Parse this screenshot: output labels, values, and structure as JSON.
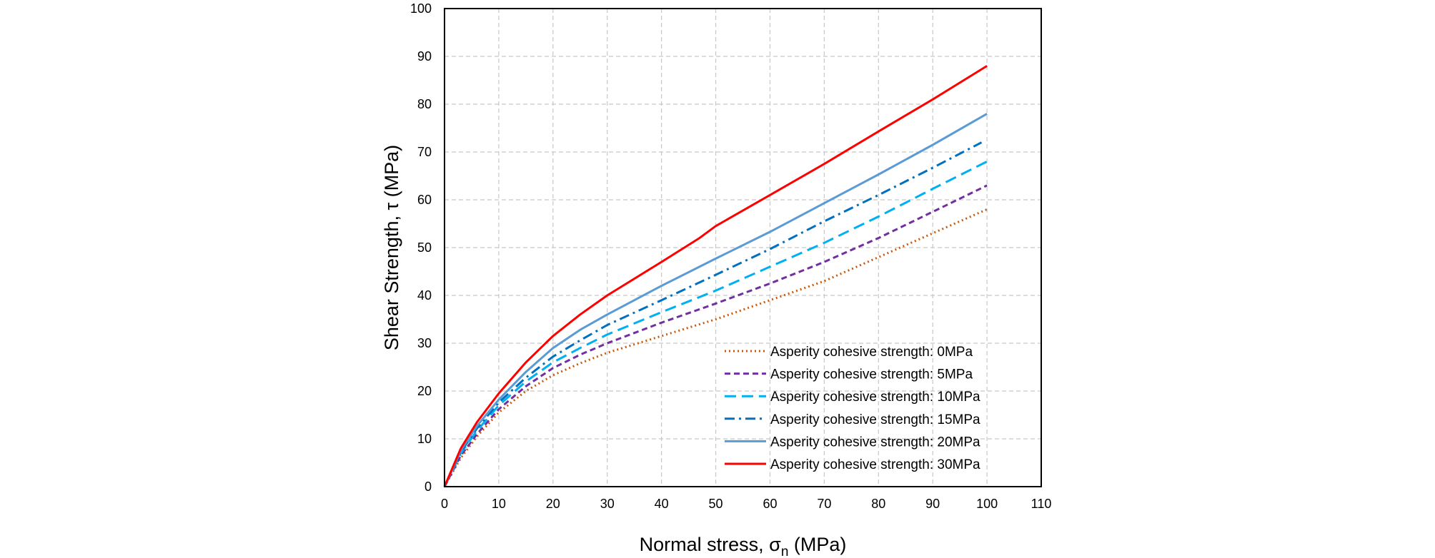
{
  "chart_data": {
    "type": "line",
    "title": "",
    "xlabel": "Normal stress, σ",
    "xlabel_subscript": "n",
    "xlabel_suffix": " (MPa)",
    "ylabel": "Shear Strength, τ (MPa)",
    "xlim": [
      0,
      110
    ],
    "ylim": [
      0,
      100
    ],
    "x_ticks": [
      0,
      10,
      20,
      30,
      40,
      50,
      60,
      70,
      80,
      90,
      100,
      110
    ],
    "y_ticks": [
      0,
      10,
      20,
      30,
      40,
      50,
      60,
      70,
      80,
      90,
      100
    ],
    "x_tick_labels": [
      "0",
      "10",
      "20",
      "30",
      "40",
      "50",
      "60",
      "70",
      "80",
      "90",
      "100",
      "110"
    ],
    "y_tick_labels": [
      "0",
      "10",
      "20",
      "30",
      "40",
      "50",
      "60",
      "70",
      "80",
      "90",
      "100"
    ],
    "grid": true,
    "grid_style": "dashed",
    "legend_position": "bottom-right",
    "series": [
      {
        "name": "Asperity cohesive strength: 0MPa",
        "color": "#c55a11",
        "dash": "dotted",
        "x": [
          0,
          3,
          6,
          10,
          15,
          20,
          25,
          30,
          40,
          50,
          60,
          70,
          80,
          90,
          100
        ],
        "y": [
          0,
          6,
          10.5,
          15.5,
          20,
          23.3,
          25.8,
          28,
          31.5,
          35,
          39,
          43,
          48,
          53,
          58
        ]
      },
      {
        "name": "Asperity cohesive strength: 5MPa",
        "color": "#7030a0",
        "dash": "dashed",
        "x": [
          0,
          3,
          6,
          10,
          15,
          20,
          25,
          30,
          40,
          50,
          60,
          70,
          80,
          90,
          100
        ],
        "y": [
          0,
          6.5,
          11,
          16.2,
          21,
          24.8,
          27.6,
          30,
          34.3,
          38.3,
          42.5,
          47,
          52,
          57.5,
          63
        ]
      },
      {
        "name": "Asperity cohesive strength: 10MPa",
        "color": "#00b0f0",
        "dash": "longdash",
        "x": [
          0,
          3,
          6,
          10,
          15,
          20,
          25,
          30,
          40,
          50,
          60,
          70,
          80,
          90,
          100
        ],
        "y": [
          0,
          7,
          11.7,
          17,
          22,
          26,
          29,
          31.8,
          36.5,
          41,
          46,
          51,
          56.5,
          62.3,
          68
        ]
      },
      {
        "name": "Asperity cohesive strength: 15MPa",
        "color": "#0070c0",
        "dash": "dashdot",
        "x": [
          0,
          3,
          6,
          10,
          15,
          20,
          25,
          30,
          40,
          50,
          60,
          70,
          80,
          90,
          99
        ],
        "y": [
          0,
          7.3,
          12.2,
          17.6,
          22.8,
          27.2,
          30.6,
          33.8,
          39,
          44.3,
          49.7,
          55.5,
          61,
          66.7,
          72
        ]
      },
      {
        "name": "Asperity cohesive strength: 20MPa",
        "color": "#5b9bd5",
        "dash": "solid",
        "x": [
          0,
          3,
          6,
          10,
          15,
          20,
          25,
          30,
          40,
          50,
          60,
          70,
          80,
          90,
          100
        ],
        "y": [
          0,
          7.6,
          12.7,
          18.2,
          24,
          29,
          32.8,
          36,
          42,
          47.7,
          53.3,
          59.3,
          65.3,
          71.5,
          78
        ]
      },
      {
        "name": "Asperity cohesive strength: 30MPa",
        "color": "#ff0000",
        "dash": "solid",
        "x": [
          0,
          3,
          6,
          10,
          15,
          20,
          25,
          30,
          40,
          47,
          50,
          60,
          70,
          80,
          90,
          100
        ],
        "y": [
          0,
          8,
          13.5,
          19.5,
          26,
          31.5,
          36,
          40,
          47,
          52,
          54.5,
          61,
          67.5,
          74.3,
          81,
          88
        ]
      }
    ]
  }
}
